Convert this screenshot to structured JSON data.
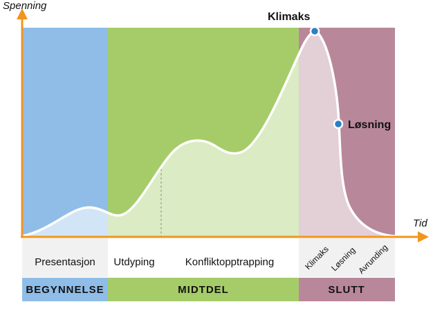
{
  "axes": {
    "y_label": "Spenning",
    "x_label": "Tid",
    "color": "#f0951e"
  },
  "points": {
    "climax": "Klimaks",
    "resolution": "Løsning",
    "marker_color": "#2d7fc3"
  },
  "phases": {
    "beginning": {
      "label": "BEGYNNELSE",
      "color": "#8fbde8",
      "label_bg": "#8fbde8"
    },
    "middle": {
      "label": "MIDTDEL",
      "color": "#a6cc6a",
      "label_bg": "#a6cc6a"
    },
    "end": {
      "label": "SLUTT",
      "color": "#b8889a",
      "label_bg": "#b8889a"
    }
  },
  "sub_stages": {
    "presentation": "Presentasjon",
    "elaboration": "Utdyping",
    "conflict_escalation": "Konfliktopptrapping",
    "climax": "Klimaks",
    "resolution": "Løsning",
    "rounding_off": "Avrunding"
  }
}
